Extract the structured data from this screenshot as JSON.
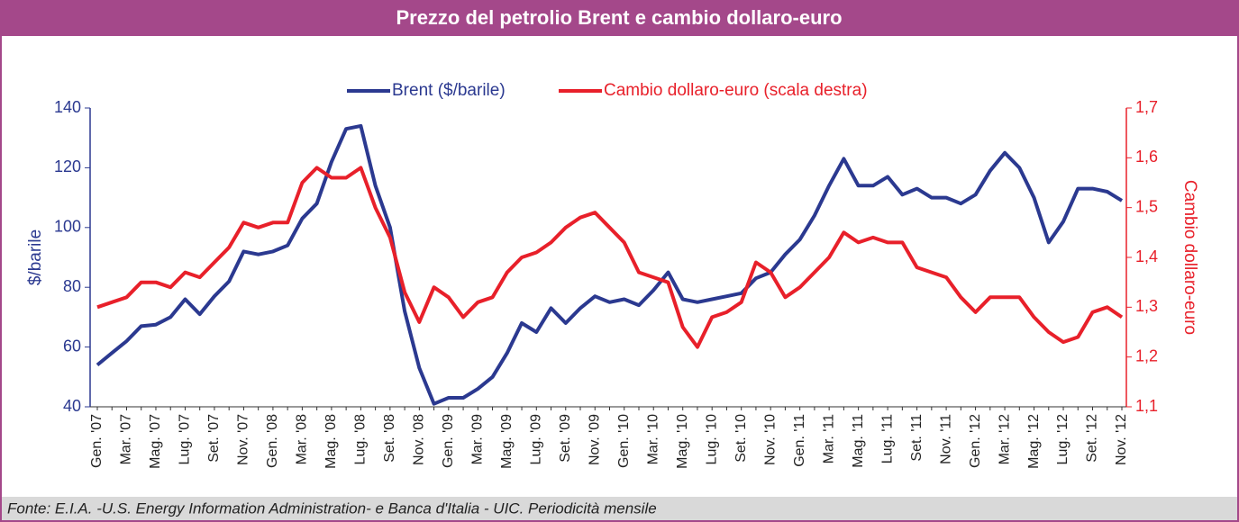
{
  "chart_data": {
    "type": "line",
    "title": "Prezzo del petrolio Brent e cambio dollaro-euro",
    "source": "Fonte: E.I.A. -U.S. Energy Information Administration- e Banca d'Italia - UIC. Periodicità mensile",
    "ylabel": "$/barile",
    "y2label": "Cambio dollaro-euro",
    "legend": "top",
    "categories": [
      "Gen. '07",
      null,
      "Mar. '07",
      null,
      "Mag. '07",
      null,
      "Lug. '07",
      null,
      "Set. '07",
      null,
      "Nov. '07",
      null,
      "Gen. '08",
      null,
      "Mar. '08",
      null,
      "Mag. '08",
      null,
      "Lug. '08",
      null,
      "Set. '08",
      null,
      "Nov. '08",
      null,
      "Gen. '09",
      null,
      "Mar. '09",
      null,
      "Mag. '09",
      null,
      "Lug. '09",
      null,
      "Set. '09",
      null,
      "Nov. '09",
      null,
      "Gen. '10",
      null,
      "Mar. '10",
      null,
      "Mag. '10",
      null,
      "Lug. '10",
      null,
      "Set. '10",
      null,
      "Nov. '10",
      null,
      "Gen. '11",
      null,
      "Mar. '11",
      null,
      "Mag. '11",
      null,
      "Lug. '11",
      null,
      "Set. '11",
      null,
      "Nov. '11",
      null,
      "Gen. '12",
      null,
      "Mar. '12",
      null,
      "Mag. '12",
      null,
      "Lug. '12",
      null,
      "Set. '12",
      null,
      "Nov. '12"
    ],
    "series": [
      {
        "name": "Brent ($/barile)",
        "color": "#2b3990",
        "axis": "y",
        "values": [
          54,
          58,
          62,
          67,
          67.5,
          70,
          76,
          71,
          77,
          82,
          92,
          91,
          92,
          94,
          103,
          108,
          122,
          133,
          134,
          114,
          100,
          72,
          53,
          41,
          43,
          43,
          46,
          50,
          58,
          68,
          65,
          73,
          68,
          73,
          77,
          75,
          76,
          74,
          79,
          85,
          76,
          75,
          76,
          77,
          78,
          83,
          85,
          91,
          96,
          104,
          114,
          123,
          114,
          114,
          117,
          111,
          113,
          110,
          110,
          108,
          111,
          119,
          125,
          120,
          110,
          95,
          102,
          113,
          113,
          112,
          109
        ]
      },
      {
        "name": "Cambio dollaro-euro (scala destra)",
        "color": "#e8202a",
        "axis": "y2",
        "values": [
          1.3,
          1.31,
          1.32,
          1.35,
          1.35,
          1.34,
          1.37,
          1.36,
          1.39,
          1.42,
          1.47,
          1.46,
          1.47,
          1.47,
          1.55,
          1.58,
          1.56,
          1.56,
          1.58,
          1.5,
          1.44,
          1.33,
          1.27,
          1.34,
          1.32,
          1.28,
          1.31,
          1.32,
          1.37,
          1.4,
          1.41,
          1.43,
          1.46,
          1.48,
          1.49,
          1.46,
          1.43,
          1.37,
          1.36,
          1.35,
          1.26,
          1.22,
          1.28,
          1.29,
          1.31,
          1.39,
          1.37,
          1.32,
          1.34,
          1.37,
          1.4,
          1.45,
          1.43,
          1.44,
          1.43,
          1.43,
          1.38,
          1.37,
          1.36,
          1.32,
          1.29,
          1.32,
          1.32,
          1.32,
          1.28,
          1.25,
          1.23,
          1.24,
          1.29,
          1.3,
          1.28
        ]
      }
    ],
    "ylim": [
      40,
      140
    ],
    "yticks": [
      40,
      60,
      80,
      100,
      120,
      140
    ],
    "y2lim": [
      1.1,
      1.7
    ],
    "y2ticks": [
      {
        "value": 1.1,
        "label": "1,1"
      },
      {
        "value": 1.2,
        "label": "1,2"
      },
      {
        "value": 1.3,
        "label": "1,3"
      },
      {
        "value": 1.4,
        "label": "1,4"
      },
      {
        "value": 1.5,
        "label": "1,5"
      },
      {
        "value": 1.6,
        "label": "1,6"
      },
      {
        "value": 1.7,
        "label": "1,7"
      }
    ]
  }
}
